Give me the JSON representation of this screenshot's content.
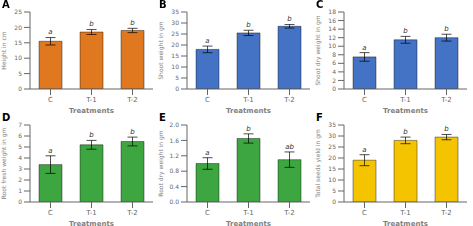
{
  "chart_data": [
    {
      "type": "bar",
      "title": "A",
      "y_label": "Height in cm",
      "x_label": "Treatments",
      "categories": [
        "C",
        "T-1",
        "T-2"
      ],
      "values": [
        15.5,
        18.5,
        19.0
      ],
      "errors": [
        1.2,
        0.8,
        0.7
      ],
      "annotations": [
        "a",
        "b",
        "b"
      ],
      "ylim": [
        0,
        25.0
      ],
      "yticks": [
        0,
        5,
        10,
        15,
        20,
        25
      ],
      "color": "#E07820"
    },
    {
      "type": "bar",
      "title": "B",
      "y_label": "Shoot weight in gm",
      "x_label": "Treatments",
      "categories": [
        "C",
        "T-1",
        "T-2"
      ],
      "values": [
        18.0,
        25.5,
        28.5
      ],
      "errors": [
        1.5,
        1.2,
        0.8
      ],
      "annotations": [
        "a",
        "b",
        "b"
      ],
      "ylim": [
        0,
        35.0
      ],
      "yticks": [
        0,
        5,
        10,
        15,
        20,
        25,
        30,
        35
      ],
      "color": "#4472C4"
    },
    {
      "type": "bar",
      "title": "C",
      "y_label": "Shoot dry weight in gm",
      "x_label": "Treatments",
      "categories": [
        "C",
        "T-1",
        "T-2"
      ],
      "values": [
        7.5,
        11.5,
        12.0
      ],
      "errors": [
        1.0,
        0.8,
        0.8
      ],
      "annotations": [
        "a",
        "b",
        "b"
      ],
      "ylim": [
        0,
        18.0
      ],
      "yticks": [
        0,
        2,
        4,
        6,
        8,
        10,
        12,
        14,
        16,
        18
      ],
      "color": "#4472C4"
    },
    {
      "type": "bar",
      "title": "D",
      "y_label": "Root fresh weight in gm",
      "x_label": "Treatments",
      "categories": [
        "C",
        "T-1",
        "T-2"
      ],
      "values": [
        3.4,
        5.2,
        5.5
      ],
      "errors": [
        0.8,
        0.4,
        0.4
      ],
      "annotations": [
        "a",
        "b",
        "b"
      ],
      "ylim": [
        0,
        7.0
      ],
      "yticks": [
        0,
        1,
        2,
        3,
        4,
        5,
        6,
        7
      ],
      "color": "#3DA640"
    },
    {
      "type": "bar",
      "title": "E",
      "y_label": "Root dry weight in gm",
      "x_label": "Treatments",
      "categories": [
        "C",
        "T-1",
        "T-2"
      ],
      "values": [
        1.0,
        1.65,
        1.1
      ],
      "errors": [
        0.15,
        0.12,
        0.2
      ],
      "annotations": [
        "a",
        "b",
        "ab"
      ],
      "ylim": [
        0,
        2.0
      ],
      "yticks": [
        {
          "value": 0,
          "label": "0.0"
        },
        0.4,
        0.8,
        1.2,
        1.6,
        {
          "value": 2,
          "label": "2.0"
        }
      ],
      "color": "#3DA640"
    },
    {
      "type": "bar",
      "title": "F",
      "y_label": "Total seeds yield in gm",
      "x_label": "Treatments",
      "categories": [
        "C",
        "T-1",
        "T-2"
      ],
      "values": [
        19.0,
        28.0,
        29.5
      ],
      "errors": [
        2.5,
        1.5,
        1.2
      ],
      "annotations": [
        "a",
        "b",
        "b"
      ],
      "ylim": [
        0,
        35.0
      ],
      "yticks": [
        0,
        5,
        10,
        15,
        20,
        25,
        30,
        35
      ],
      "color": "#F5C400"
    }
  ]
}
